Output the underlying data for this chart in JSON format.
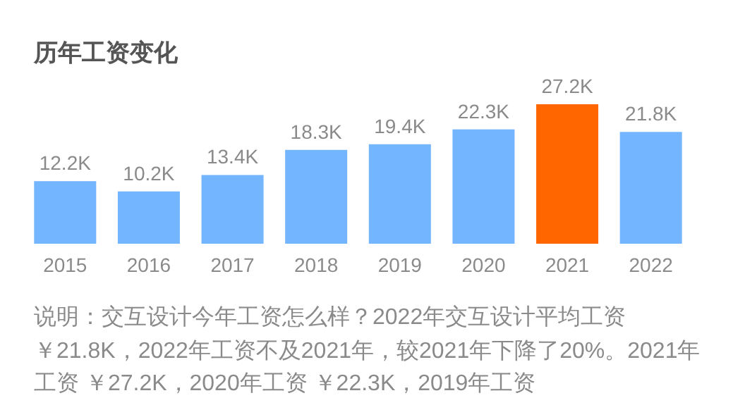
{
  "chart_data": {
    "type": "bar",
    "title": "历年工资变化",
    "categories": [
      "2015",
      "2016",
      "2017",
      "2018",
      "2019",
      "2020",
      "2021",
      "2022"
    ],
    "values": [
      12.2,
      10.2,
      13.4,
      18.3,
      19.4,
      22.3,
      27.2,
      21.8
    ],
    "value_labels": [
      "12.2K",
      "10.2K",
      "13.4K",
      "18.3K",
      "19.4K",
      "22.3K",
      "27.2K",
      "21.8K"
    ],
    "colors": [
      "#74b5ff",
      "#74b5ff",
      "#74b5ff",
      "#74b5ff",
      "#74b5ff",
      "#74b5ff",
      "#ff6600",
      "#74b5ff"
    ],
    "ylim": [
      0,
      27.2
    ],
    "annotations": [
      "说明：交互设计今年工资怎么样？2022年交互设计平均工资￥21.8K，2022年工资不及2021年，较2021年下降了20%。2021年工资 ￥27.2K，2020年工资 ￥22.3K，2019年工资"
    ]
  }
}
